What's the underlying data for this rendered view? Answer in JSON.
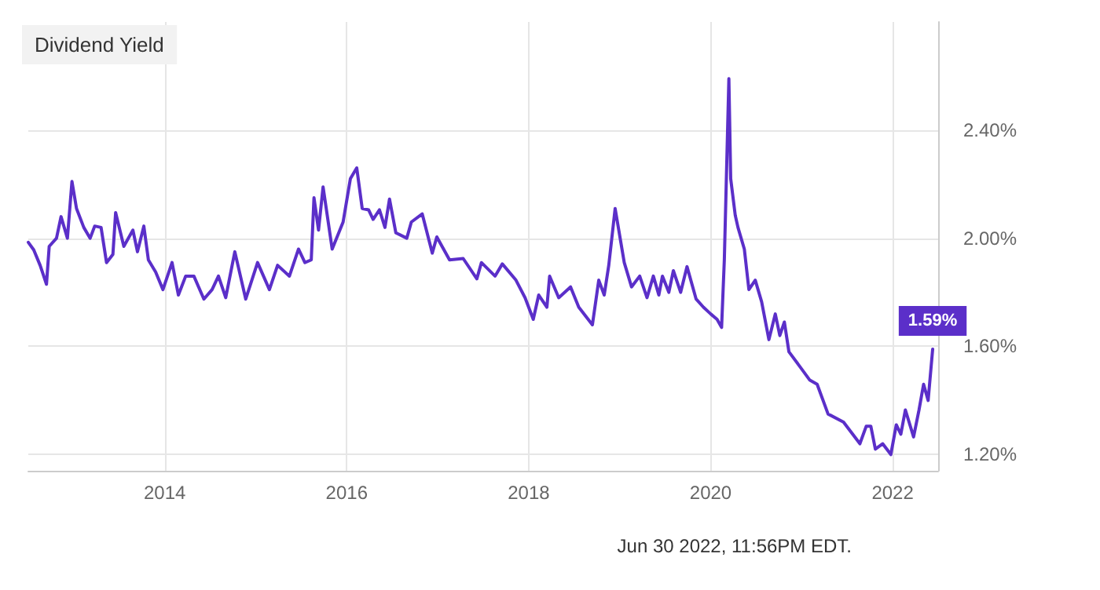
{
  "chart_data": {
    "type": "line",
    "title": "Dividend Yield",
    "x": [
      2012.5,
      2012.56,
      2012.63,
      2012.7,
      2012.73,
      2012.81,
      2012.86,
      2012.93,
      2012.98,
      2013.03,
      2013.11,
      2013.18,
      2013.23,
      2013.3,
      2013.36,
      2013.43,
      2013.46,
      2013.55,
      2013.65,
      2013.7,
      2013.77,
      2013.82,
      2013.9,
      2013.98,
      2014.08,
      2014.15,
      2014.23,
      2014.32,
      2014.43,
      2014.52,
      2014.59,
      2014.67,
      2014.77,
      2014.89,
      2015.02,
      2015.15,
      2015.24,
      2015.37,
      2015.47,
      2015.54,
      2015.61,
      2015.64,
      2015.69,
      2015.74,
      2015.84,
      2015.96,
      2016.04,
      2016.11,
      2016.17,
      2016.24,
      2016.29,
      2016.36,
      2016.42,
      2016.47,
      2016.54,
      2016.66,
      2016.71,
      2016.83,
      2016.94,
      2016.99,
      2017.13,
      2017.28,
      2017.43,
      2017.48,
      2017.63,
      2017.71,
      2017.86,
      2017.96,
      2018.05,
      2018.11,
      2018.2,
      2018.23,
      2018.33,
      2018.46,
      2018.55,
      2018.7,
      2018.77,
      2018.83,
      2018.88,
      2018.95,
      2019.05,
      2019.13,
      2019.22,
      2019.3,
      2019.37,
      2019.43,
      2019.47,
      2019.54,
      2019.59,
      2019.67,
      2019.74,
      2019.84,
      2019.92,
      2020.0,
      2020.07,
      2020.12,
      2020.15,
      2020.2,
      2020.22,
      2020.27,
      2020.3,
      2020.37,
      2020.42,
      2020.49,
      2020.56,
      2020.64,
      2020.71,
      2020.76,
      2020.81,
      2020.86,
      2020.97,
      2021.09,
      2021.17,
      2021.29,
      2021.46,
      2021.64,
      2021.71,
      2021.76,
      2021.81,
      2021.89,
      2021.98,
      2022.04,
      2022.09,
      2022.14,
      2022.23,
      2022.29,
      2022.34,
      2022.39,
      2022.44
    ],
    "series": [
      {
        "color": "#5b2fc9",
        "values": [
          1.985,
          1.957,
          1.9,
          1.83,
          1.97,
          2.0,
          2.08,
          2.0,
          2.21,
          2.11,
          2.04,
          2.0,
          2.045,
          2.04,
          1.91,
          1.94,
          2.095,
          1.97,
          2.03,
          1.95,
          2.045,
          1.92,
          1.875,
          1.81,
          1.91,
          1.79,
          1.86,
          1.86,
          1.775,
          1.81,
          1.86,
          1.78,
          1.95,
          1.775,
          1.91,
          1.81,
          1.9,
          1.86,
          1.96,
          1.91,
          1.92,
          2.15,
          2.03,
          2.19,
          1.96,
          2.06,
          2.22,
          2.26,
          2.11,
          2.105,
          2.07,
          2.105,
          2.04,
          2.145,
          2.02,
          2.0,
          2.06,
          2.09,
          1.945,
          2.005,
          1.92,
          1.925,
          1.85,
          1.91,
          1.86,
          1.905,
          1.845,
          1.78,
          1.7,
          1.79,
          1.745,
          1.86,
          1.78,
          1.82,
          1.745,
          1.68,
          1.845,
          1.79,
          1.9,
          2.11,
          1.91,
          1.82,
          1.86,
          1.78,
          1.86,
          1.79,
          1.86,
          1.8,
          1.88,
          1.8,
          1.895,
          1.775,
          1.745,
          1.72,
          1.7,
          1.67,
          1.92,
          2.59,
          2.22,
          2.085,
          2.04,
          1.96,
          1.81,
          1.845,
          1.765,
          1.625,
          1.72,
          1.64,
          1.69,
          1.58,
          1.53,
          1.475,
          1.46,
          1.35,
          1.32,
          1.24,
          1.305,
          1.305,
          1.22,
          1.24,
          1.2,
          1.31,
          1.275,
          1.365,
          1.265,
          1.365,
          1.46,
          1.4,
          1.59
        ]
      }
    ],
    "xlim": [
      2012.5,
      2022.5
    ],
    "xticks": [
      2014,
      2016,
      2018,
      2020,
      2022
    ],
    "ylim": [
      1.14,
      2.8
    ],
    "yticks": [
      {
        "value": 1.2,
        "label": "1.20%"
      },
      {
        "value": 1.6,
        "label": "1.60%"
      },
      {
        "value": 2.0,
        "label": "2.00%"
      },
      {
        "value": 2.4,
        "label": "2.40%"
      }
    ],
    "grid": true,
    "annotations": [
      {
        "text": "1.59%",
        "x": 2022.44,
        "y": 1.59
      },
      "Jun 30 2022, 11:56PM EDT."
    ]
  }
}
